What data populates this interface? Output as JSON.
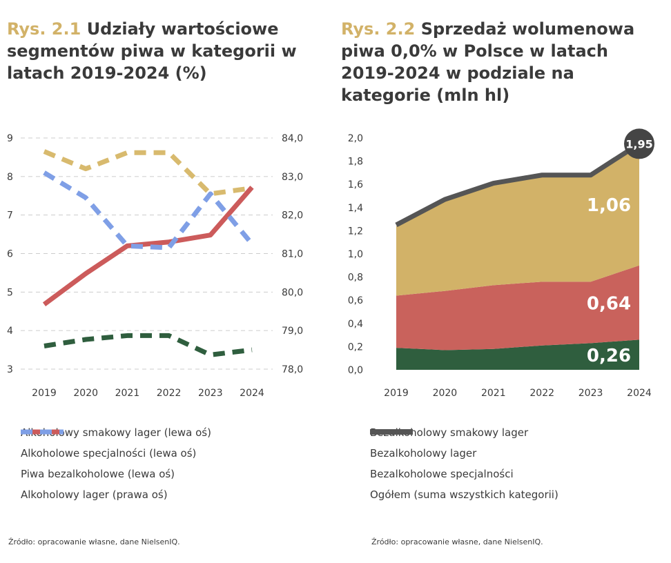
{
  "left": {
    "title_num": "Rys. 2.1",
    "title_text": "Udziały wartościowe segmentów piwa w kategorii w latach 2019-2024 (%)",
    "source": "Źródło: opracowanie własne, dane NielsenIQ.",
    "legend": [
      {
        "label": "Alkoholowy smakowy lager (lewa oś)",
        "color": "#d8ba6e",
        "dash": true
      },
      {
        "label": "Alkoholowe specjalności (lewa oś)",
        "color": "#2f5e3e",
        "dash": true
      },
      {
        "label": "Piwa bezalkoholowe (lewa oś)",
        "color": "#cc5b5b",
        "dash": false
      },
      {
        "label": "Alkoholowy lager (prawa oś)",
        "color": "#7f9fe6",
        "dash": true
      }
    ]
  },
  "right": {
    "title_num": "Rys. 2.2",
    "title_text": "Sprzedaż wolumenowa piwa 0,0% w Polsce w latach 2019-2024 w podziale na kategorie (mln hl)",
    "source": "Źródło: opracowanie własne, dane NielsenIQ.",
    "legend": [
      {
        "label": "Bezalkoholowy smakowy lager",
        "color": "#d2b268"
      },
      {
        "label": "Bezalkoholowy lager",
        "color": "#c9625c"
      },
      {
        "label": "Bezalkoholowe specjalności",
        "color": "#2f5e3e"
      },
      {
        "label": "Ogółem (suma wszystkich kategorii)",
        "color": "#555555"
      }
    ]
  },
  "chart_data": [
    {
      "type": "line",
      "x": [
        "2019",
        "2020",
        "2021",
        "2022",
        "2023",
        "2024"
      ],
      "y_left_range": [
        3,
        9
      ],
      "y_left_ticks": [
        "3",
        "4",
        "5",
        "6",
        "7",
        "8",
        "9"
      ],
      "y_right_range": [
        78.0,
        84.0
      ],
      "y_right_ticks": [
        "78,0",
        "79,0",
        "80,0",
        "81,0",
        "82,0",
        "83,0",
        "84,0"
      ],
      "grid": true,
      "series": [
        {
          "name": "Alkoholowy smakowy lager (lewa oś)",
          "axis": "left",
          "color": "#d8ba6e",
          "dash": true,
          "values": [
            8.65,
            8.2,
            8.62,
            8.62,
            7.55,
            7.7
          ]
        },
        {
          "name": "Alkoholowe specjalności (lewa oś)",
          "axis": "left",
          "color": "#2f5e3e",
          "dash": true,
          "values": [
            3.6,
            3.77,
            3.87,
            3.87,
            3.37,
            3.5
          ]
        },
        {
          "name": "Piwa bezalkoholowe (lewa oś)",
          "axis": "left",
          "color": "#cc5b5b",
          "dash": false,
          "values": [
            4.68,
            5.48,
            6.2,
            6.3,
            6.48,
            7.72
          ]
        },
        {
          "name": "Alkoholowy lager (prawa oś)",
          "axis": "right",
          "color": "#7f9fe6",
          "dash": true,
          "values": [
            83.1,
            82.45,
            81.2,
            81.15,
            82.55,
            81.25
          ]
        }
      ]
    },
    {
      "type": "area",
      "stacked": true,
      "x": [
        "2019",
        "2020",
        "2021",
        "2022",
        "2023",
        "2024"
      ],
      "y_range": [
        0,
        2.0
      ],
      "y_ticks": [
        "0,0",
        "0,2",
        "0,4",
        "0,6",
        "0,8",
        "1,0",
        "1,2",
        "1,4",
        "1,6",
        "1,8",
        "2,0"
      ],
      "grid": false,
      "series": [
        {
          "name": "Bezalkoholowe specjalności",
          "color": "#2f5e3e",
          "values": [
            0.19,
            0.17,
            0.18,
            0.21,
            0.23,
            0.26
          ]
        },
        {
          "name": "Bezalkoholowy lager",
          "color": "#c9625c",
          "values": [
            0.45,
            0.51,
            0.55,
            0.55,
            0.53,
            0.64
          ]
        },
        {
          "name": "Bezalkoholowy smakowy lager",
          "color": "#d2b268",
          "values": [
            0.6,
            0.79,
            0.88,
            0.92,
            0.92,
            1.06
          ]
        }
      ],
      "total": {
        "name": "Ogółem (suma wszystkich kategorii)",
        "color": "#555555",
        "values": [
          1.25,
          1.47,
          1.61,
          1.68,
          1.68,
          1.95
        ]
      },
      "data_labels": [
        "0,26",
        "0,64",
        "1,06"
      ],
      "total_label": "1,95"
    }
  ]
}
